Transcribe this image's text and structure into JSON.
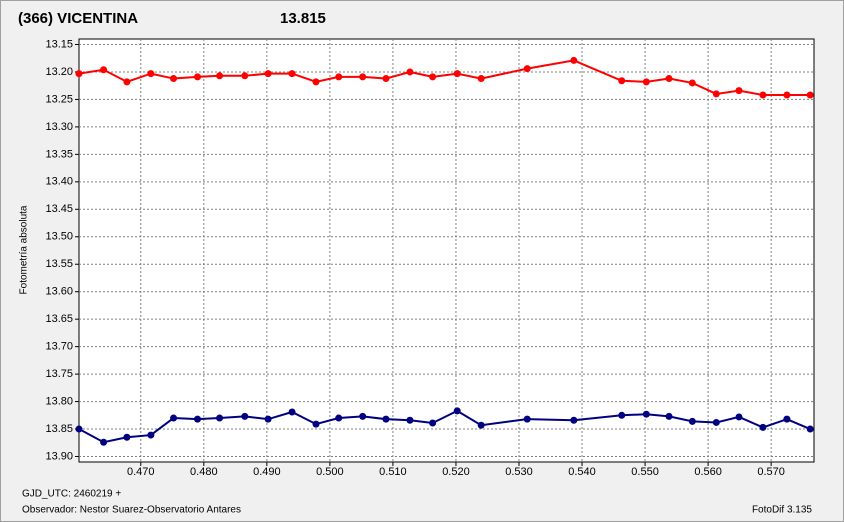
{
  "chart_data": {
    "type": "line",
    "title": "(366) VICENTINA",
    "title_color": "#ff0000",
    "subtitle": "13.815",
    "subtitle_color": "#000080",
    "y_label": "Fotometría absoluta",
    "x_label": "GJD_UTC: 2460219 +",
    "observer": "Observador: Nestor Suarez-Observatorio Antares",
    "software": "FotoDif 3.135",
    "grid": true,
    "xlim": [
      0.4602,
      0.5768
    ],
    "ylim": [
      13.91,
      13.14
    ],
    "xticks": [
      {
        "value": 0.47,
        "label": "0.470"
      },
      {
        "value": 0.48,
        "label": "0.480"
      },
      {
        "value": 0.49,
        "label": "0.490"
      },
      {
        "value": 0.5,
        "label": "0.500"
      },
      {
        "value": 0.51,
        "label": "0.510"
      },
      {
        "value": 0.52,
        "label": "0.520"
      },
      {
        "value": 0.53,
        "label": "0.530"
      },
      {
        "value": 0.54,
        "label": "0.540"
      },
      {
        "value": 0.55,
        "label": "0.550"
      },
      {
        "value": 0.56,
        "label": "0.560"
      },
      {
        "value": 0.57,
        "label": "0.570"
      }
    ],
    "yticks": [
      13.15,
      {
        "value": 13.2,
        "label": "13.20"
      },
      13.25,
      {
        "value": 13.3,
        "label": "13.30"
      },
      13.35,
      {
        "value": 13.4,
        "label": "13.40"
      },
      13.45,
      {
        "value": 13.5,
        "label": "13.50"
      },
      13.55,
      {
        "value": 13.6,
        "label": "13.60"
      },
      13.65,
      {
        "value": 13.7,
        "label": "13.70"
      },
      13.75,
      {
        "value": 13.8,
        "label": "13.80"
      },
      13.85,
      {
        "value": 13.9,
        "label": "13.90"
      }
    ],
    "x": [
      0.4602,
      0.4641,
      0.4678,
      0.4716,
      0.4752,
      0.479,
      0.4825,
      0.4865,
      0.4902,
      0.494,
      0.4978,
      0.5014,
      0.5052,
      0.5089,
      0.5127,
      0.5163,
      0.5202,
      0.524,
      0.5313,
      0.5387,
      0.5463,
      0.5502,
      0.5538,
      0.5575,
      0.5613,
      0.5649,
      0.5687,
      0.5725,
      0.5762
    ],
    "series": [
      {
        "color": "#ff0000",
        "values": [
          13.203,
          13.196,
          13.218,
          13.203,
          13.212,
          13.209,
          13.207,
          13.207,
          13.203,
          13.203,
          13.218,
          13.209,
          13.209,
          13.212,
          13.2,
          13.209,
          13.203,
          13.212,
          13.194,
          13.179,
          13.216,
          13.218,
          13.212,
          13.22,
          13.24,
          13.234,
          13.242,
          13.242,
          13.242
        ]
      },
      {
        "color": "#000080",
        "values": [
          13.85,
          13.874,
          13.865,
          13.861,
          13.83,
          13.832,
          13.83,
          13.827,
          13.832,
          13.819,
          13.841,
          13.83,
          13.827,
          13.832,
          13.834,
          13.839,
          13.817,
          13.843,
          13.832,
          13.834,
          13.825,
          13.823,
          13.827,
          13.836,
          13.838,
          13.828,
          13.847,
          13.832,
          13.85
        ]
      }
    ]
  }
}
